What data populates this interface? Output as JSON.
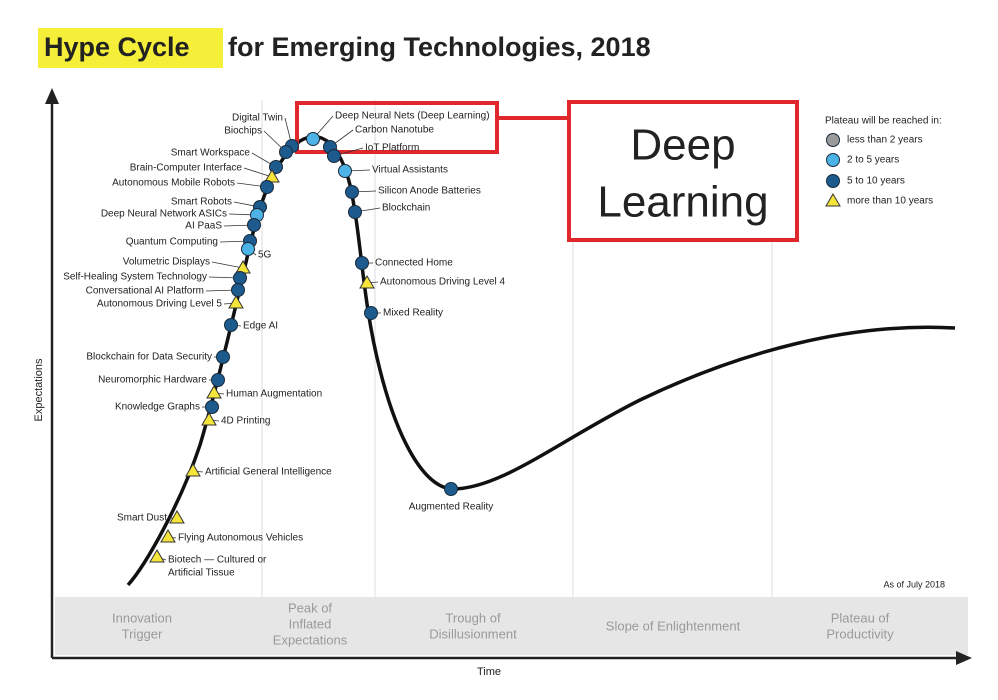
{
  "title": {
    "highlight": "Hype Cycle",
    "rest": "for Emerging Technologies, 2018"
  },
  "y_axis_label": "Expectations",
  "x_axis_label": "Time",
  "legend": {
    "title": "Plateau will be reached in:",
    "items": [
      "less than 2 years",
      "2 to 5 years",
      "5 to 10 years",
      "more than 10 years"
    ]
  },
  "technologies": [
    "Deep Neural Nets (Deep Learning)",
    "Carbon Nanotube",
    "IoT Platform",
    "Virtual Assistants",
    "Silicon Anode Batteries",
    "Blockchain",
    "Connected Home",
    "Autonomous Driving Level 4",
    "Mixed Reality",
    "Augmented Reality",
    "Digital Twin",
    "Biochips",
    "Smart Workspace",
    "Brain-Computer Interface",
    "Autonomous Mobile Robots",
    "Smart Robots",
    "Deep Neural Network ASICs",
    "AI PaaS",
    "Quantum Computing",
    "5G",
    "Volumetric Displays",
    "Self-Healing System Technology",
    "Conversational AI Platform",
    "Autonomous Driving Level 5",
    "Edge AI",
    "Blockchain for Data Security",
    "Neuromorphic Hardware",
    "Human Augmentation",
    "Knowledge Graphs",
    "4D Printing",
    "Artificial General Intelligence",
    "Smart Dust",
    "Flying Autonomous Vehicles",
    [
      "Biotech — Cultured or",
      "Artificial Tissue"
    ]
  ],
  "phases": [
    [
      "Innovation",
      "Trigger"
    ],
    [
      "Peak of",
      "Inflated",
      "Expectations"
    ],
    [
      "Trough of",
      "Disillusionment"
    ],
    [
      "Slope of Enlightenment"
    ],
    [
      "Plateau of",
      "Productivity"
    ]
  ],
  "note": "As of July 2018",
  "callout": [
    "Deep",
    "Learning"
  ]
}
